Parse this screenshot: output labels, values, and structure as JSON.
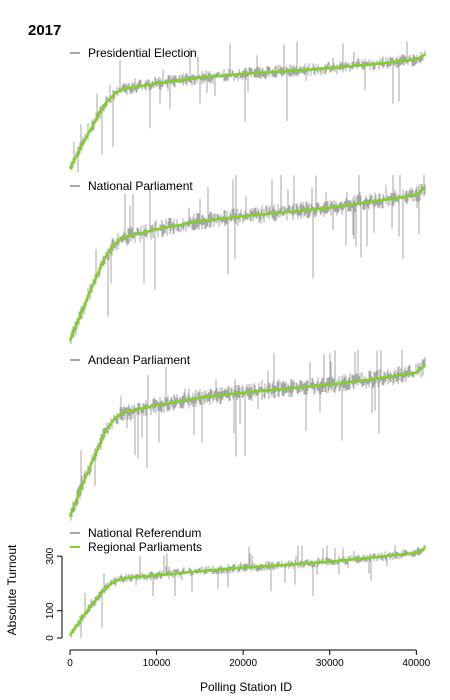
{
  "figure": {
    "year_label": "2017"
  },
  "chart_data": {
    "type": "line",
    "title": "2017",
    "xlabel": "Polling Station ID",
    "ylabel": "Absolute Turnout",
    "xlim": [
      0,
      41000
    ],
    "x_ticks": [
      0,
      10000,
      20000,
      30000,
      40000
    ],
    "ylim": [
      0,
      330
    ],
    "y_ticks": [
      0,
      100,
      300
    ],
    "grid": false,
    "legend_position": "top-left",
    "colors": {
      "raw": "#a6a6a6",
      "smooth": "#7fd12a"
    },
    "panels": [
      {
        "name": "Presidential Election",
        "series": [
          {
            "name": "Presidential Election",
            "color": "#a6a6a6",
            "x": [
              0,
              2000,
              4000,
              5000,
              6000,
              10000,
              15000,
              20000,
              25000,
              30000,
              35000,
              40000,
              41000
            ],
            "values": [
              10,
              95,
              175,
              200,
              215,
              230,
              245,
              255,
              262,
              270,
              280,
              292,
              305
            ]
          },
          {
            "name": "Presidential Election (smoothed)",
            "color": "#7fd12a",
            "x": [
              0,
              2000,
              4000,
              5000,
              6000,
              10000,
              15000,
              20000,
              25000,
              30000,
              35000,
              40000,
              41000
            ],
            "values": [
              10,
              95,
              175,
              200,
              215,
              230,
              245,
              255,
              262,
              270,
              280,
              292,
              305
            ]
          }
        ]
      },
      {
        "name": "National Parliament",
        "series": [
          {
            "name": "National Parliament",
            "color": "#a6a6a6",
            "x": [
              0,
              2000,
              4000,
              5000,
              6000,
              10000,
              15000,
              20000,
              25000,
              30000,
              35000,
              40000,
              41000
            ],
            "values": [
              10,
              95,
              175,
              200,
              215,
              232,
              248,
              258,
              266,
              275,
              287,
              300,
              315
            ]
          },
          {
            "name": "National Parliament (smoothed)",
            "color": "#7fd12a",
            "x": [
              0,
              2000,
              4000,
              5000,
              6000,
              10000,
              15000,
              20000,
              25000,
              30000,
              35000,
              40000,
              41000
            ],
            "values": [
              10,
              95,
              175,
              200,
              215,
              232,
              248,
              258,
              266,
              275,
              287,
              300,
              315
            ]
          }
        ]
      },
      {
        "name": "Andean Parliament",
        "series": [
          {
            "name": "Andean Parliament",
            "color": "#a6a6a6",
            "x": [
              0,
              2000,
              4000,
              5000,
              6000,
              10000,
              15000,
              20000,
              25000,
              30000,
              35000,
              40000,
              41000
            ],
            "values": [
              10,
              95,
              175,
              200,
              215,
              230,
              245,
              255,
              263,
              271,
              282,
              295,
              310
            ]
          },
          {
            "name": "Andean Parliament (smoothed)",
            "color": "#7fd12a",
            "x": [
              0,
              2000,
              4000,
              5000,
              6000,
              10000,
              15000,
              20000,
              25000,
              30000,
              35000,
              40000,
              41000
            ],
            "values": [
              10,
              95,
              175,
              200,
              215,
              230,
              245,
              255,
              263,
              271,
              282,
              295,
              310
            ]
          }
        ]
      },
      {
        "name": "National Referendum / Regional Parliaments",
        "legend": [
          "National Referendum",
          "Regional Parliaments"
        ],
        "series": [
          {
            "name": "National Referendum",
            "color": "#a6a6a6",
            "x": [
              0,
              2000,
              4000,
              5000,
              6000,
              10000,
              15000,
              20000,
              25000,
              30000,
              35000,
              40000,
              41000
            ],
            "values": [
              10,
              100,
              180,
              205,
              218,
              230,
              245,
              258,
              268,
              280,
              295,
              312,
              330
            ]
          },
          {
            "name": "Regional Parliaments",
            "color": "#7fd12a",
            "x": [
              0,
              2000,
              4000,
              5000,
              6000,
              10000,
              15000,
              20000,
              25000,
              30000,
              35000,
              40000,
              41000
            ],
            "values": [
              10,
              100,
              180,
              205,
              218,
              230,
              245,
              258,
              268,
              280,
              295,
              312,
              330
            ]
          }
        ]
      }
    ]
  }
}
